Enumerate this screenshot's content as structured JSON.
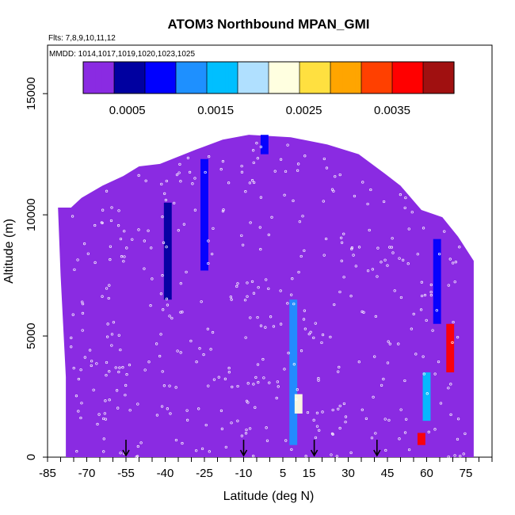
{
  "chart_data": {
    "type": "heatmap",
    "title": "ATOM3 Northbound MPAN_GMI",
    "flights_label": "Flts: 7,8,9,10,11,12",
    "dates_label": "MMDD: 1014,1017,1019,1020,1023,1025",
    "xlabel": "Latitude (deg N)",
    "ylabel": "Altitude (m)",
    "xlim": [
      -85,
      85
    ],
    "ylim": [
      0,
      17000
    ],
    "xticks": [
      -85,
      -70,
      -55,
      -40,
      -25,
      -10,
      5,
      15,
      30,
      45,
      60,
      75
    ],
    "yticks": [
      0,
      5000,
      10000,
      15000
    ],
    "colorbar": {
      "min": 0,
      "max": 0.0042,
      "ticks": [
        "0.0005",
        "0.0015",
        "0.0025",
        "0.0035"
      ],
      "tick_values": [
        0.0005,
        0.0015,
        0.0025,
        0.0035
      ],
      "colors": [
        "#8a2be2",
        "#0000a0",
        "#0000ff",
        "#1e90ff",
        "#00bfff",
        "#b0e0ff",
        "#ffffe0",
        "#ffe040",
        "#ffa500",
        "#ff4000",
        "#ff0000",
        "#a01010"
      ]
    },
    "background_value": 0.0001,
    "ceiling": [
      [
        -76,
        10300
      ],
      [
        -72,
        10700
      ],
      [
        -64,
        11200
      ],
      [
        -56,
        11600
      ],
      [
        -50,
        12000
      ],
      [
        -42,
        12100
      ],
      [
        -28,
        12700
      ],
      [
        -18,
        13100
      ],
      [
        -8,
        13300
      ],
      [
        8,
        13200
      ],
      [
        22,
        12900
      ],
      [
        34,
        12500
      ],
      [
        44,
        11700
      ],
      [
        50,
        11200
      ],
      [
        58,
        10200
      ],
      [
        66,
        9900
      ],
      [
        72,
        9100
      ],
      [
        78,
        8100
      ]
    ],
    "bottom_left_edge": [
      [
        -78,
        0
      ],
      [
        -78,
        3300
      ],
      [
        -80,
        7500
      ],
      [
        -81,
        10300
      ]
    ],
    "features": [
      {
        "lat": -25,
        "alt_min": 7700,
        "alt_max": 12300,
        "value": 0.0009
      },
      {
        "lat": -39,
        "alt_min": 6500,
        "alt_max": 10500,
        "value": 0.0005
      },
      {
        "lat": -2,
        "alt_min": 12500,
        "alt_max": 13300,
        "value": 0.0008
      },
      {
        "lat": 9,
        "alt_min": 500,
        "alt_max": 6500,
        "value": 0.0013
      },
      {
        "lat": 11,
        "alt_min": 1800,
        "alt_max": 2600,
        "value": 0.0024
      },
      {
        "lat": 58,
        "alt_min": 500,
        "alt_max": 1000,
        "value": 0.0035
      },
      {
        "lat": 60,
        "alt_min": 1500,
        "alt_max": 3500,
        "value": 0.0016
      },
      {
        "lat": 69,
        "alt_min": 3500,
        "alt_max": 5500,
        "value": 0.0036
      },
      {
        "lat": 64,
        "alt_min": 5500,
        "alt_max": 9000,
        "value": 0.001
      }
    ],
    "arrow_lats": [
      -55,
      -10,
      17,
      41
    ]
  }
}
